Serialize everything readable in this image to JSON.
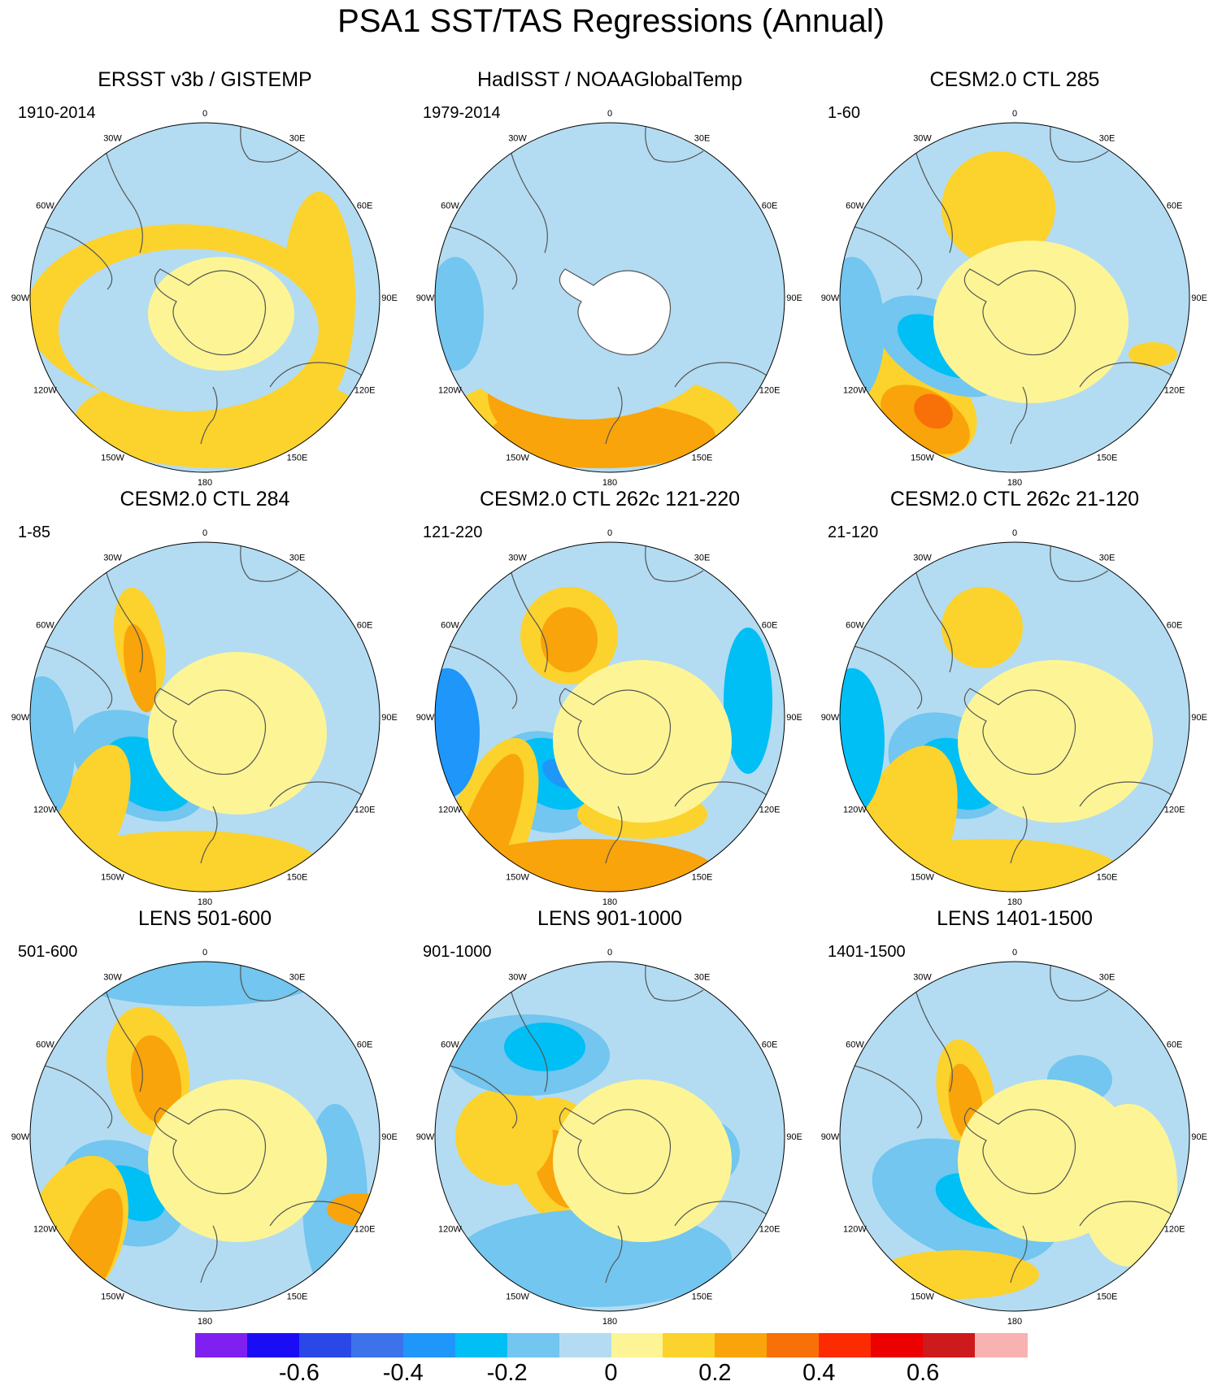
{
  "title": "PSA1 SST/TAS Regressions (Annual)",
  "longitude_labels": [
    "0",
    "30E",
    "60E",
    "90E",
    "120E",
    "150E",
    "180",
    "150W",
    "120W",
    "90W",
    "60W",
    "30W"
  ],
  "panels": [
    {
      "title": "ERSST v3b / GISTEMP",
      "period": "1910-2014"
    },
    {
      "title": "HadISST / NOAAGlobalTemp",
      "period": "1979-2014"
    },
    {
      "title": "CESM2.0 CTL 285",
      "period": "1-60"
    },
    {
      "title": "CESM2.0 CTL 284",
      "period": "1-85"
    },
    {
      "title": "CESM2.0 CTL 262c 121-220",
      "period": "121-220"
    },
    {
      "title": "CESM2.0 CTL 262c 21-120",
      "period": "21-120"
    },
    {
      "title": "LENS 501-600",
      "period": "501-600"
    },
    {
      "title": "LENS 901-1000",
      "period": "901-1000"
    },
    {
      "title": "LENS 1401-1500",
      "period": "1401-1500"
    }
  ],
  "colorbar": {
    "colors": [
      "#7f1ff0",
      "#1a0df5",
      "#2a48e8",
      "#3c73ea",
      "#1e96fa",
      "#00bff5",
      "#72c6ef",
      "#b3dcf2",
      "#fdf595",
      "#fcd22c",
      "#f9a40a",
      "#f87008",
      "#fc2b02",
      "#ec0000",
      "#cd1a1d",
      "#f9b2b2"
    ],
    "tick_labels": [
      "-0.6",
      "-0.4",
      "-0.2",
      "0",
      "0.2",
      "0.4",
      "0.6"
    ],
    "tick_values": [
      -0.6,
      -0.4,
      -0.2,
      0,
      0.2,
      0.4,
      0.6
    ],
    "range": [
      -0.8,
      0.8
    ]
  }
}
